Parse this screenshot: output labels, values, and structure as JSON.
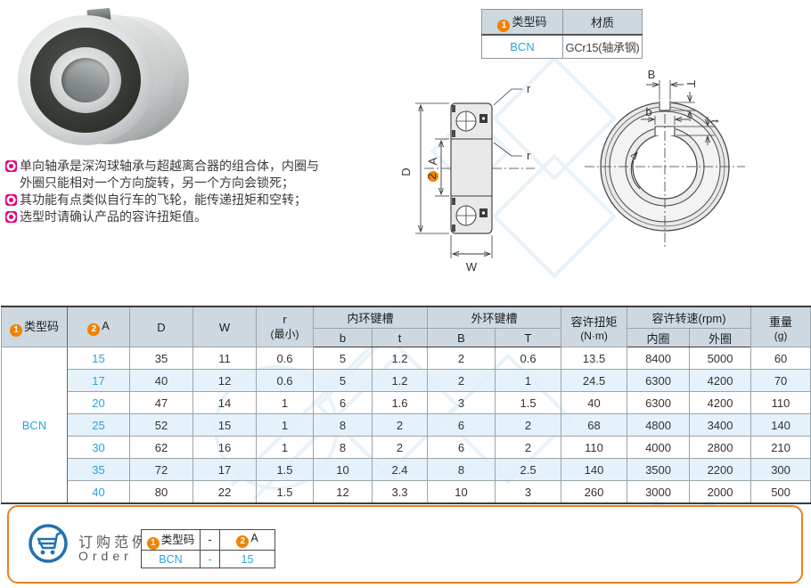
{
  "badges": {
    "one": "1",
    "two": "2"
  },
  "colors": {
    "accent_orange": "#f08300",
    "link_blue": "#29a3dc",
    "header_bg": "#cdd8e0",
    "alt_row_bg": "#e7f1f9",
    "bullet_magenta": "#e5007f",
    "cart_blue": "#2473ae",
    "order_border_orange": "#ee7f1b"
  },
  "info_table": {
    "header": {
      "type_code": "类型码",
      "material": "材质"
    },
    "row": {
      "code": "BCN",
      "material": "GCr15(轴承钢)"
    }
  },
  "description": {
    "lines": [
      {
        "bullet": true,
        "text": "单向轴承是深沟球轴承与超越离合器的组合体，内圈与"
      },
      {
        "bullet": false,
        "text": "外圈只能相对一个方向旋转，另一个方向会锁死；"
      },
      {
        "bullet": true,
        "text": "其功能有点类似自行车的飞轮，能传递扭矩和空转；"
      },
      {
        "bullet": true,
        "text": "选型时请确认产品的容许扭矩值。"
      }
    ]
  },
  "drawing": {
    "d": "D",
    "a": "A",
    "w": "W",
    "r": "r",
    "B": "B",
    "T": "T",
    "b": "b",
    "t": "t"
  },
  "main_table": {
    "header": {
      "type_code": "类型码",
      "a": "A",
      "d": "D",
      "w": "W",
      "r1": "r",
      "r2": "(最小)",
      "inner_group": "内环键槽",
      "b": "b",
      "t": "t",
      "outer_group": "外环键槽",
      "B": "B",
      "T": "T",
      "torque1": "容许扭矩",
      "torque2": "(N·m)",
      "speed_group": "容许转速(rpm)",
      "speed_inner": "内圈",
      "speed_outer": "外圈",
      "weight1": "重量",
      "weight2": "(g)"
    },
    "type_code_value": "BCN",
    "rows": [
      [
        "15",
        "35",
        "11",
        "0.6",
        "5",
        "1.2",
        "2",
        "0.6",
        "13.5",
        "8400",
        "5000",
        "60"
      ],
      [
        "17",
        "40",
        "12",
        "0.6",
        "5",
        "1.2",
        "2",
        "1",
        "24.5",
        "6300",
        "4200",
        "70"
      ],
      [
        "20",
        "47",
        "14",
        "1",
        "6",
        "1.6",
        "3",
        "1.5",
        "40",
        "6300",
        "4200",
        "110"
      ],
      [
        "25",
        "52",
        "15",
        "1",
        "8",
        "2",
        "6",
        "2",
        "68",
        "4800",
        "3400",
        "140"
      ],
      [
        "30",
        "62",
        "16",
        "1",
        "8",
        "2",
        "6",
        "2",
        "110",
        "4000",
        "2800",
        "210"
      ],
      [
        "35",
        "72",
        "17",
        "1.5",
        "10",
        "2.4",
        "8",
        "2.5",
        "140",
        "3500",
        "2200",
        "300"
      ],
      [
        "40",
        "80",
        "22",
        "1.5",
        "12",
        "3.3",
        "10",
        "3",
        "260",
        "3000",
        "2000",
        "500"
      ]
    ]
  },
  "order": {
    "title": "订购范例",
    "subtitle": "Order",
    "table": {
      "header": {
        "type_code": "类型码",
        "dash": "-",
        "a": "A"
      },
      "row": {
        "code": "BCN",
        "dash": "-",
        "a": "15"
      }
    }
  }
}
